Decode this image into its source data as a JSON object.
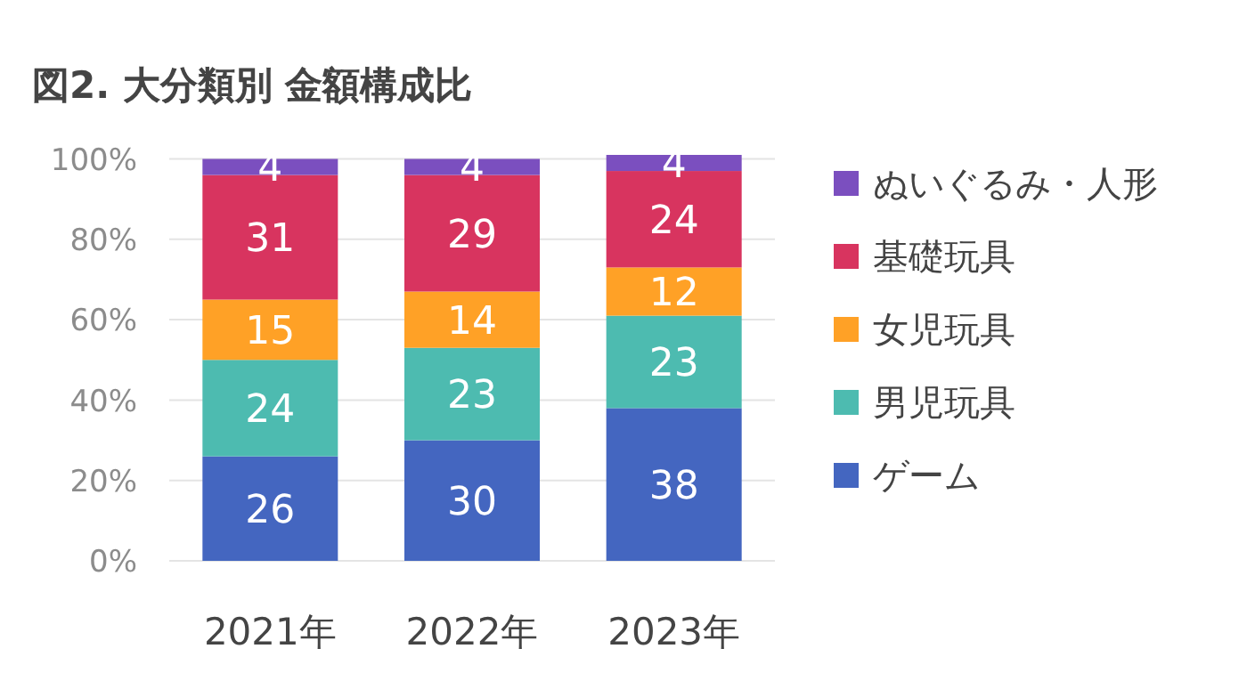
{
  "chart_data": {
    "type": "bar",
    "stacked": true,
    "title": "図2.  大分類別  金額構成比",
    "categories": [
      "2021年",
      "2022年",
      "2023年"
    ],
    "series": [
      {
        "name": "ゲーム",
        "color": "#4466c0",
        "values": [
          26,
          30,
          38
        ]
      },
      {
        "name": "男児玩具",
        "color": "#4dbbb0",
        "values": [
          24,
          23,
          23
        ]
      },
      {
        "name": "女児玩具",
        "color": "#ffa126",
        "values": [
          15,
          14,
          12
        ]
      },
      {
        "name": "基礎玩具",
        "color": "#d8345f",
        "values": [
          31,
          29,
          24
        ]
      },
      {
        "name": "ぬいぐるみ・人形",
        "color": "#7b4fbf",
        "values": [
          4,
          4,
          4
        ]
      }
    ],
    "ylim": [
      0,
      101
    ],
    "yticks": [
      {
        "value": 0,
        "label": "0%"
      },
      {
        "value": 20,
        "label": "20%"
      },
      {
        "value": 40,
        "label": "40%"
      },
      {
        "value": 60,
        "label": "60%"
      },
      {
        "value": 80,
        "label": "80%"
      },
      {
        "value": 100,
        "label": "100%"
      }
    ],
    "grid": "y",
    "legend": "right",
    "data_labels": true
  }
}
